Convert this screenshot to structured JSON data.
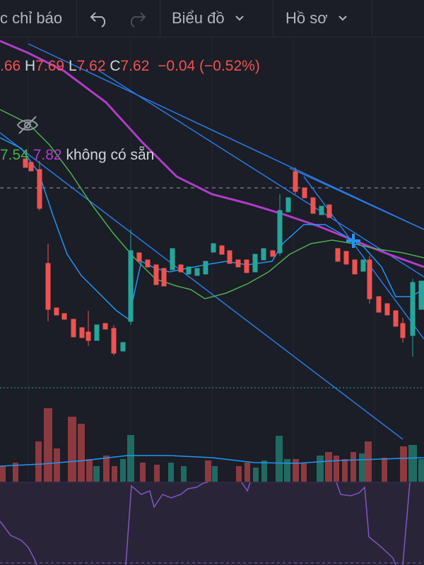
{
  "toolbar": {
    "indicators_label": "c chỉ báo",
    "chart_type_label": "Biểu đồ",
    "profile_label": "Hồ sơ",
    "undo_icon": "undo-icon",
    "redo_icon": "redo-icon"
  },
  "legend": {
    "open": ".66",
    "high_label": "H",
    "high": "7.69",
    "low_label": "L",
    "low": "7.62",
    "close_label": "C",
    "close": "7.62",
    "change": "−0.04 (−0.52%)",
    "ma1": "7.54",
    "ma2": "7.82",
    "na_text": "không có sẵn",
    "eye_icon": "eye-off-icon"
  },
  "colors": {
    "up": "#26a69a",
    "down": "#ef5350",
    "ma_fast": "#2196f3",
    "ma_mid": "#4caf50",
    "ma_slow": "#b03cc8",
    "rsi": "#7e57c2"
  }
}
